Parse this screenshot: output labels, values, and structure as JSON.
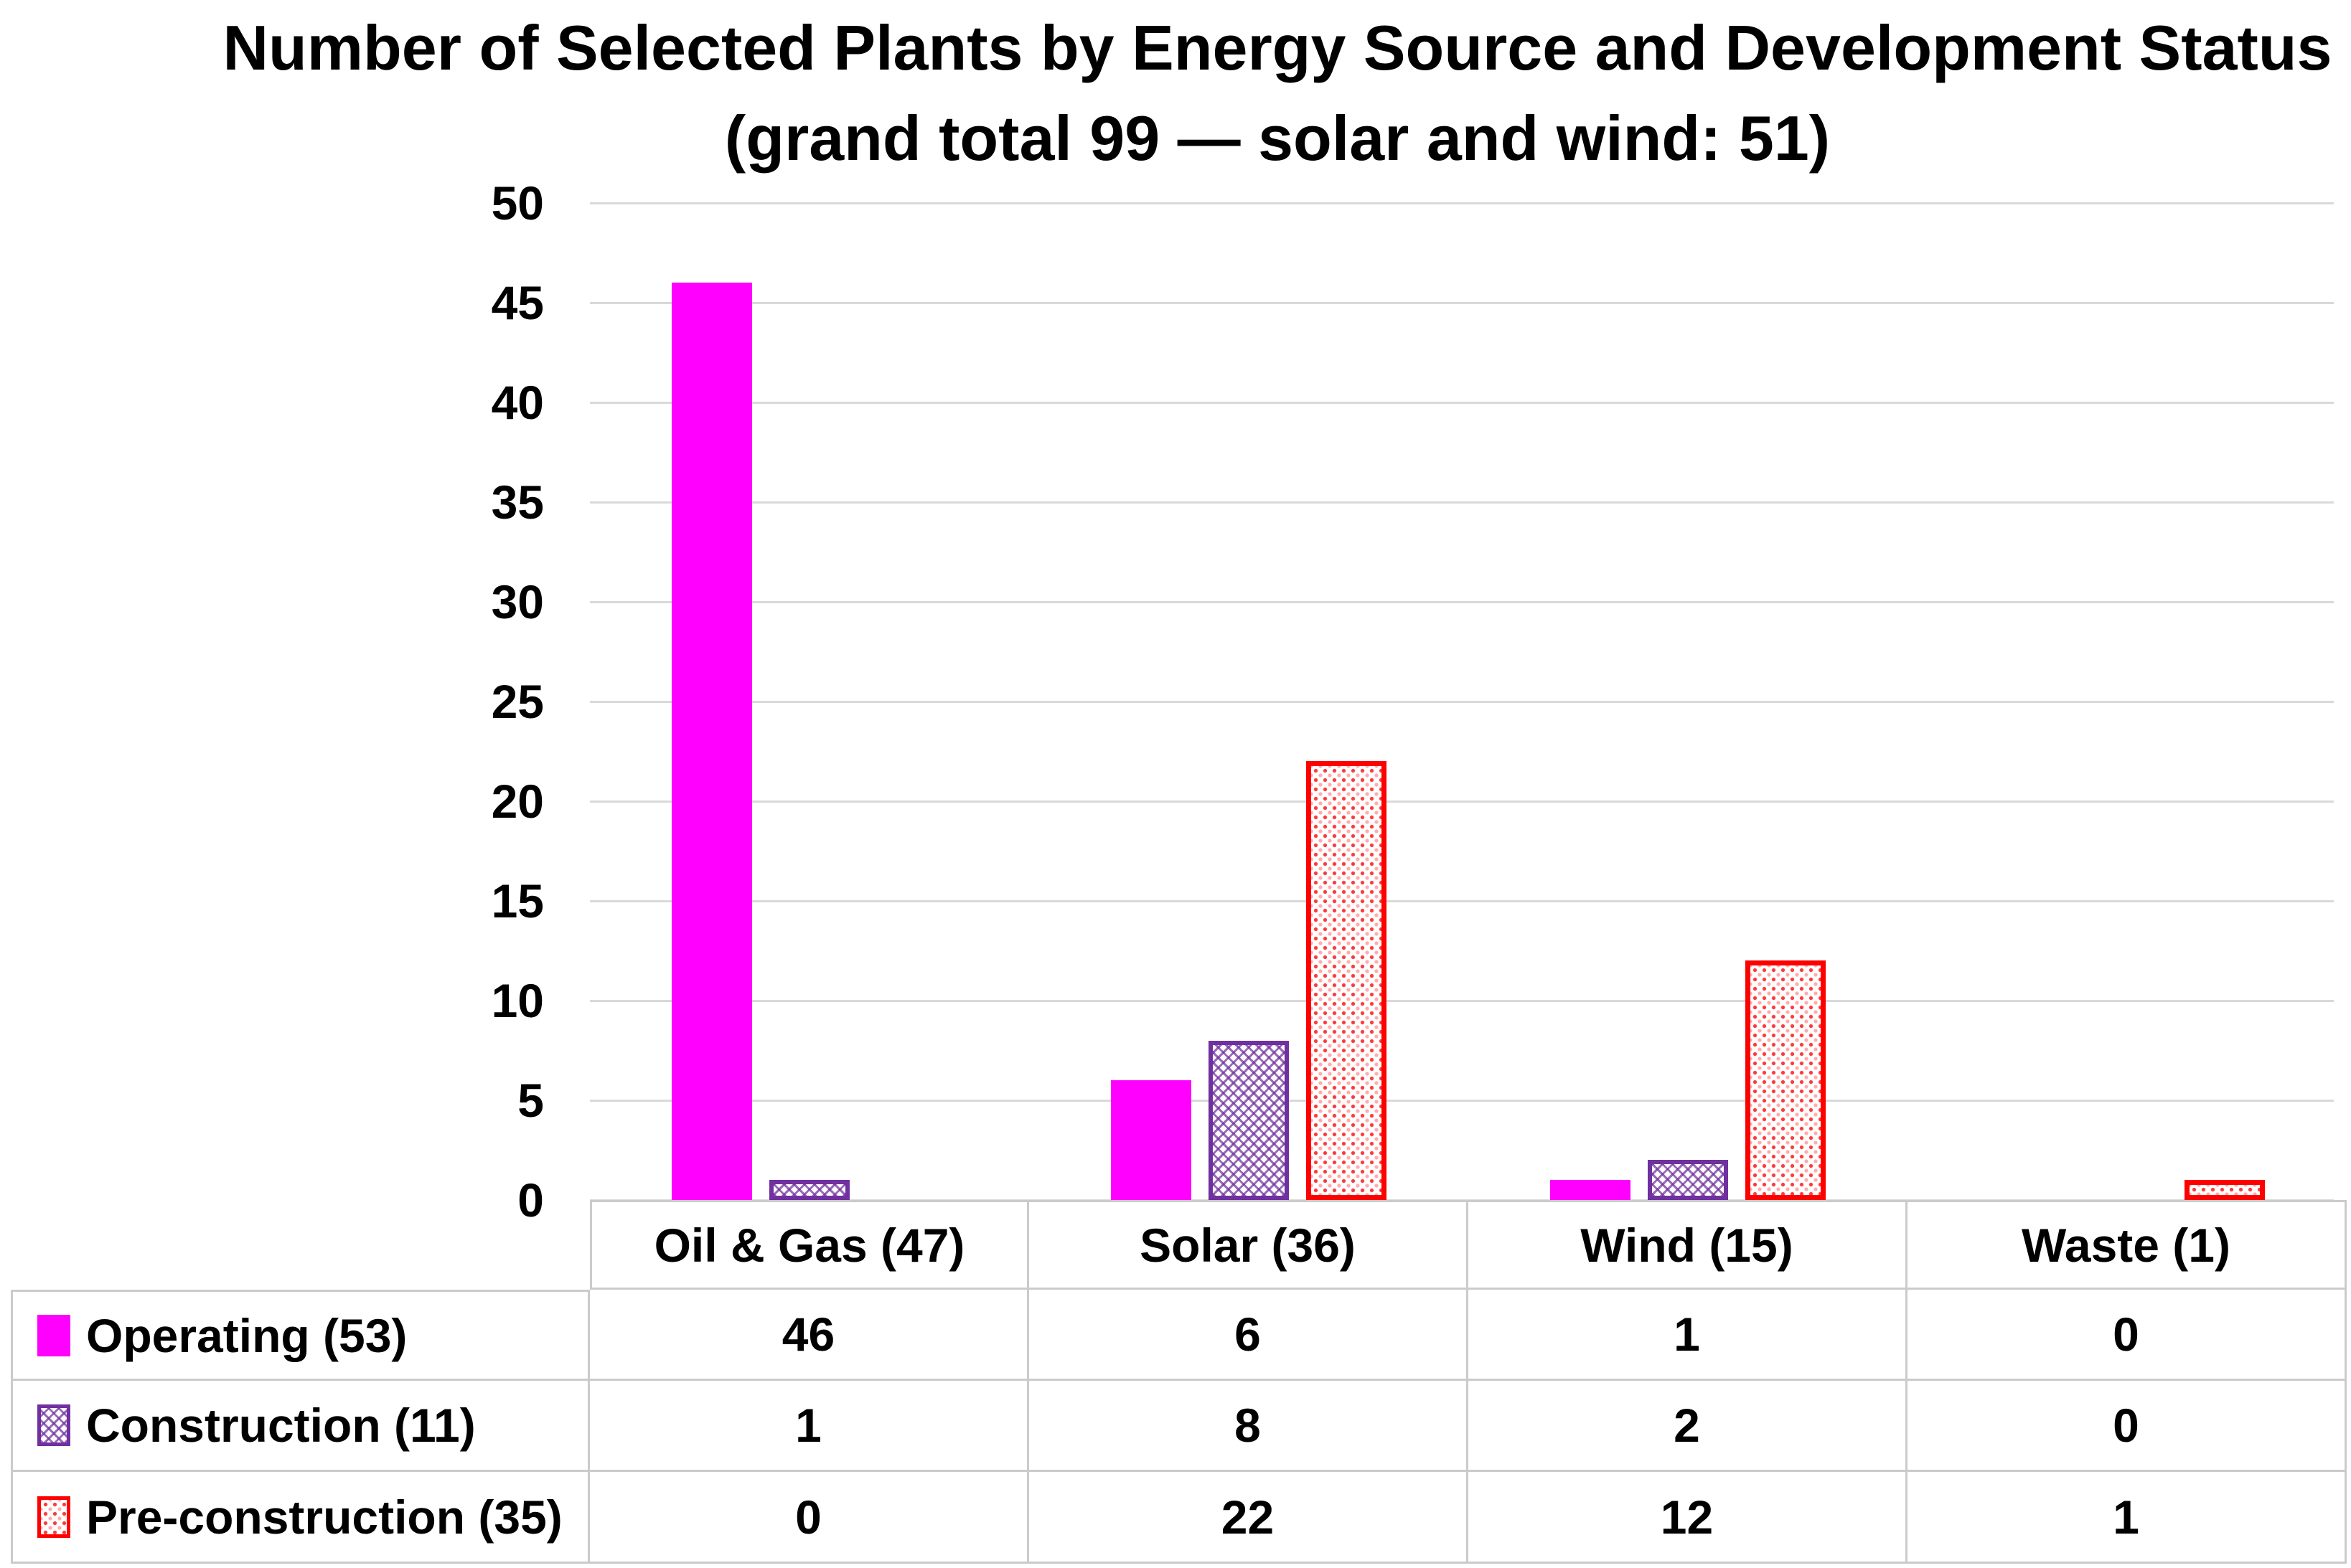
{
  "title": {
    "line1": "Number of Selected Plants by Energy Source and Development Status",
    "line2": "(grand total 99 — solar and wind: 51)"
  },
  "chart_data": {
    "type": "bar",
    "title": "Number of Selected Plants by Energy Source and Development Status",
    "subtitle": "(grand total 99 — solar and wind: 51)",
    "categories": [
      "Oil & Gas (47)",
      "Solar (36)",
      "Wind (15)",
      "Waste (1)"
    ],
    "series": [
      {
        "key": "operating",
        "name": "Operating (53)",
        "values": [
          46,
          6,
          1,
          0
        ],
        "fill": "solid",
        "color": "#FF00FF"
      },
      {
        "key": "construction",
        "name": "Construction (11)",
        "values": [
          1,
          8,
          2,
          0
        ],
        "fill": "trellis-pattern",
        "color": "#7030A0"
      },
      {
        "key": "pre-construction",
        "name": "Pre-construction (35)",
        "values": [
          0,
          22,
          12,
          1
        ],
        "fill": "dot-pattern",
        "color": "#FF0000"
      }
    ],
    "ylim": [
      0,
      50
    ],
    "ytick_step": 5,
    "yticks": [
      0,
      5,
      10,
      15,
      20,
      25,
      30,
      35,
      40,
      45,
      50
    ],
    "grid": true,
    "legend_position": "data-table-left-column",
    "data_table_shown": true
  },
  "colors": {
    "operating": "#FF00FF",
    "construction_border": "#7030A0",
    "preconstruction_border": "#FF0000",
    "gridline": "#D9D9D9",
    "table_border": "#CBCBCB",
    "text": "#000000",
    "background": "#FFFFFF"
  }
}
